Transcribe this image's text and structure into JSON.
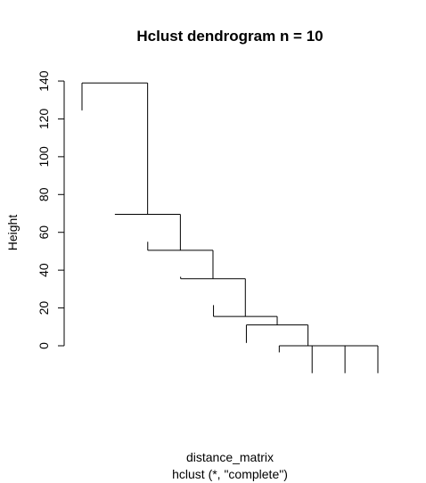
{
  "chart_data": {
    "type": "dendrogram",
    "title": "Hclust dendrogram n = 10",
    "xlabel": "distance_matrix",
    "sub": "hclust (*, \"complete\")",
    "ylabel": "Height",
    "ylim": [
      0,
      140
    ],
    "yticks": [
      0,
      20,
      40,
      60,
      80,
      100,
      120,
      140
    ],
    "n_leaves": 10,
    "merges": [
      {
        "left": "leaf-9",
        "right": "leaf-10",
        "height": 0
      },
      {
        "left": "leaf-8",
        "right": "merge-1",
        "height": 0
      },
      {
        "left": "leaf-7",
        "right": "merge-2",
        "height": 0
      },
      {
        "left": "leaf-6",
        "right": "merge-3",
        "height": 11
      },
      {
        "left": "leaf-5",
        "right": "merge-4",
        "height": 15.5
      },
      {
        "left": "leaf-4",
        "right": "merge-5",
        "height": 35.5
      },
      {
        "left": "leaf-3",
        "right": "merge-6",
        "height": 50.5
      },
      {
        "left": "leaf-2",
        "right": "merge-7",
        "height": 69.5
      },
      {
        "left": "leaf-1",
        "right": "merge-8",
        "height": 139
      }
    ],
    "leaf_ends": [
      124.5,
      null,
      55,
      36.5,
      21.5,
      1.5,
      -3.5,
      -14.5,
      -14.5,
      -14.5
    ]
  },
  "colors": {
    "line": "#000000",
    "text": "#000000",
    "background": "#ffffff"
  }
}
